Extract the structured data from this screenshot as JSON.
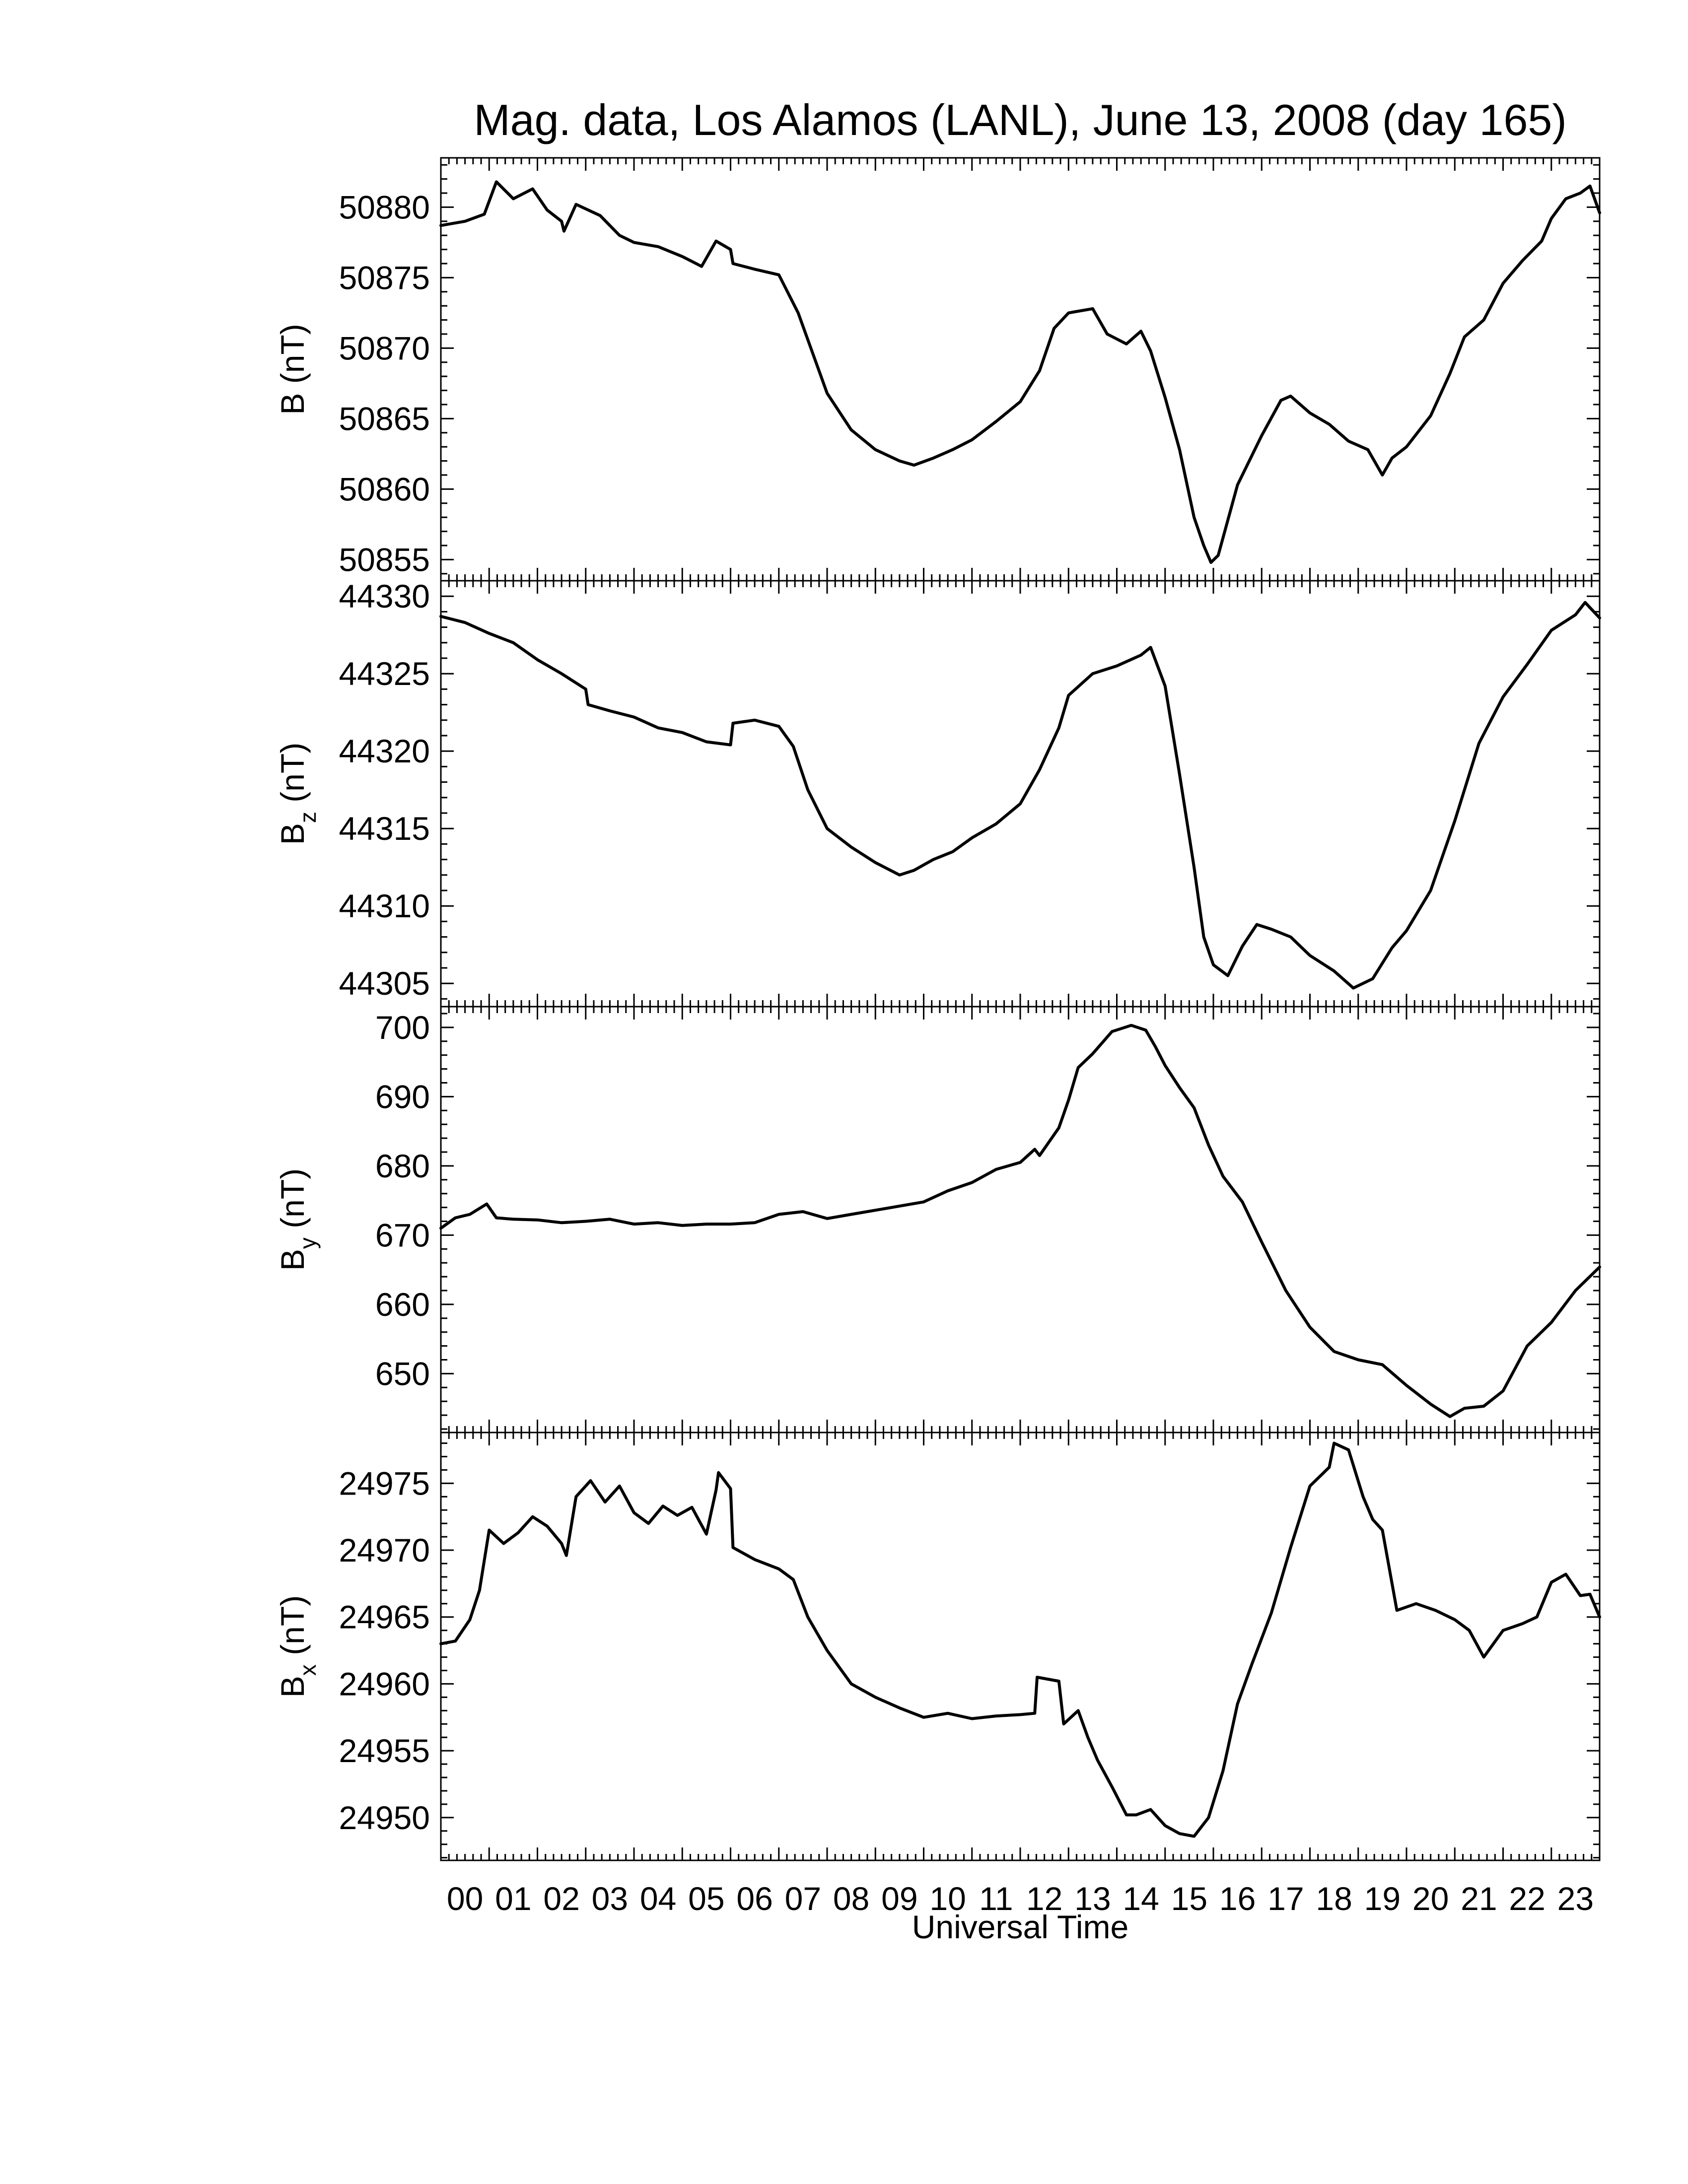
{
  "title": "Mag. data, Los Alamos (LANL), June 13, 2008 (day 165)",
  "xlabel": "Universal Time",
  "xtick_labels": [
    "00",
    "01",
    "02",
    "03",
    "04",
    "05",
    "06",
    "07",
    "08",
    "09",
    "10",
    "11",
    "12",
    "13",
    "14",
    "15",
    "16",
    "17",
    "18",
    "19",
    "20",
    "21",
    "22",
    "23"
  ],
  "chart_data": [
    {
      "type": "line",
      "ylabel": {
        "main": "B",
        "sub": "",
        "unit": "(nT)"
      },
      "xlim": [
        0,
        24
      ],
      "ylim": [
        50853.5,
        50883.5
      ],
      "yticks": [
        50855,
        50860,
        50865,
        50870,
        50875,
        50880
      ],
      "grid": false,
      "series": [
        {
          "x": [
            0,
            0.5,
            0.9,
            1.15,
            1.5,
            1.9,
            2.2,
            2.5,
            2.55,
            2.8,
            3.3,
            3.7,
            4.0,
            4.5,
            5.0,
            5.4,
            5.7,
            6.0,
            6.05,
            6.5,
            7.0,
            7.4,
            8.0,
            8.5,
            9.0,
            9.5,
            9.8,
            10.2,
            10.6,
            11.0,
            11.5,
            12.0,
            12.4,
            12.7,
            13.0,
            13.5,
            13.8,
            14.2,
            14.5,
            14.7,
            15.0,
            15.3,
            15.6,
            15.8,
            15.95,
            16.1,
            16.5,
            17.0,
            17.4,
            17.6,
            18.0,
            18.4,
            18.8,
            19.2,
            19.5,
            19.7,
            20.0,
            20.5,
            20.9,
            21.2,
            21.6,
            22.0,
            22.4,
            22.8,
            23.0,
            23.3,
            23.6,
            23.8,
            24.0
          ],
          "y": [
            50878.7,
            50879,
            50879.5,
            50881.8,
            50880.6,
            50881.3,
            50879.8,
            50879,
            50878.3,
            50880.2,
            50879.4,
            50878,
            50877.5,
            50877.2,
            50876.5,
            50875.8,
            50877.6,
            50877.0,
            50876,
            50875.6,
            50875.2,
            50872.5,
            50866.8,
            50864.2,
            50862.8,
            50862,
            50861.7,
            50862.2,
            50862.8,
            50863.5,
            50864.8,
            50866.2,
            50868.4,
            50871.4,
            50872.5,
            50872.8,
            50871,
            50870.3,
            50871.2,
            50869.8,
            50866.5,
            50862.8,
            50858,
            50856,
            50854.8,
            50855.3,
            50860.3,
            50863.8,
            50866.3,
            50866.6,
            50865.4,
            50864.6,
            50863.4,
            50862.8,
            50861,
            50862.2,
            50863,
            50865.2,
            50868.2,
            50870.8,
            50872,
            50874.6,
            50876.2,
            50877.6,
            50879.2,
            50880.6,
            50881,
            50881.5,
            50879.6
          ]
        }
      ]
    },
    {
      "type": "line",
      "ylabel": {
        "main": "B",
        "sub": "z",
        "unit": "(nT)"
      },
      "xlim": [
        0,
        24
      ],
      "ylim": [
        44303.5,
        44331
      ],
      "yticks": [
        44305,
        44310,
        44315,
        44320,
        44325,
        44330
      ],
      "grid": false,
      "series": [
        {
          "x": [
            0,
            0.5,
            1.0,
            1.5,
            2.0,
            2.5,
            3.0,
            3.05,
            3.5,
            4.0,
            4.5,
            5.0,
            5.5,
            6.0,
            6.05,
            6.5,
            7.0,
            7.3,
            7.6,
            8.0,
            8.5,
            9.0,
            9.5,
            9.8,
            10.2,
            10.6,
            11.0,
            11.5,
            12.0,
            12.4,
            12.8,
            13.0,
            13.5,
            14.0,
            14.5,
            14.7,
            15.0,
            15.3,
            15.6,
            15.8,
            16.0,
            16.3,
            16.6,
            16.9,
            17.2,
            17.6,
            18.0,
            18.5,
            18.9,
            19.3,
            19.7,
            20.0,
            20.5,
            21.0,
            21.5,
            22.0,
            22.5,
            23.0,
            23.5,
            23.7,
            24.0
          ],
          "y": [
            44328.7,
            44328.3,
            44327.6,
            44327,
            44325.9,
            44325,
            44324,
            44323,
            44322.6,
            44322.2,
            44321.5,
            44321.2,
            44320.6,
            44320.4,
            44321.8,
            44322,
            44321.6,
            44320.3,
            44317.5,
            44315,
            44313.8,
            44312.8,
            44312,
            44312.3,
            44313,
            44313.5,
            44314.4,
            44315.3,
            44316.6,
            44318.8,
            44321.5,
            44323.6,
            44325,
            44325.5,
            44326.2,
            44326.7,
            44324.2,
            44318.5,
            44312.5,
            44308,
            44306.2,
            44305.5,
            44307.4,
            44308.8,
            44308.5,
            44308,
            44306.8,
            44305.8,
            44304.7,
            44305.3,
            44307.3,
            44308.4,
            44311,
            44315.5,
            44320.5,
            44323.5,
            44325.6,
            44327.8,
            44328.8,
            44329.6,
            44328.6
          ]
        }
      ]
    },
    {
      "type": "line",
      "ylabel": {
        "main": "B",
        "sub": "y",
        "unit": "(nT)"
      },
      "xlim": [
        0,
        24
      ],
      "ylim": [
        641.5,
        703
      ],
      "yticks": [
        650,
        660,
        670,
        680,
        690,
        700
      ],
      "grid": false,
      "series": [
        {
          "x": [
            0,
            0.3,
            0.6,
            0.95,
            1.15,
            1.5,
            2.0,
            2.5,
            3.0,
            3.5,
            4.0,
            4.5,
            5.0,
            5.5,
            6.0,
            6.5,
            7.0,
            7.5,
            8.0,
            8.5,
            9.0,
            9.5,
            10.0,
            10.5,
            11.0,
            11.5,
            12.0,
            12.3,
            12.4,
            12.8,
            13.0,
            13.2,
            13.5,
            13.9,
            14.3,
            14.6,
            14.8,
            15.0,
            15.3,
            15.6,
            15.9,
            16.2,
            16.6,
            17.0,
            17.5,
            18.0,
            18.5,
            19.0,
            19.5,
            20.0,
            20.5,
            20.9,
            21.2,
            21.6,
            22.0,
            22.5,
            23.0,
            23.5,
            24.0
          ],
          "y": [
            671,
            672.5,
            673,
            674.5,
            672.5,
            672.3,
            672.2,
            671.8,
            672,
            672.3,
            671.6,
            671.8,
            671.4,
            671.6,
            671.6,
            671.8,
            673,
            673.4,
            672.4,
            673,
            673.6,
            674.2,
            674.8,
            676.4,
            677.6,
            679.5,
            680.5,
            682.4,
            681.5,
            685.5,
            689.5,
            694.2,
            696.2,
            699.4,
            700.3,
            699.6,
            697.2,
            694.5,
            691.3,
            688.4,
            683,
            678.5,
            674.8,
            669,
            662,
            656.7,
            653.2,
            652,
            651.3,
            648.3,
            645.6,
            643.8,
            645,
            645.3,
            647.5,
            654,
            657.4,
            662,
            665.4
          ]
        }
      ]
    },
    {
      "type": "line",
      "ylabel": {
        "main": "B",
        "sub": "x",
        "unit": "(nT)"
      },
      "xlim": [
        0,
        24
      ],
      "ylim": [
        24946.8,
        24978.8
      ],
      "yticks": [
        24950,
        24955,
        24960,
        24965,
        24970,
        24975
      ],
      "grid": false,
      "series": [
        {
          "x": [
            0,
            0.3,
            0.6,
            0.8,
            1.0,
            1.3,
            1.6,
            1.9,
            2.2,
            2.5,
            2.6,
            2.8,
            3.1,
            3.4,
            3.7,
            4.0,
            4.3,
            4.6,
            4.9,
            5.2,
            5.5,
            5.7,
            5.75,
            6.0,
            6.05,
            6.5,
            7.0,
            7.3,
            7.6,
            8.0,
            8.5,
            9.0,
            9.5,
            10.0,
            10.5,
            11.0,
            11.5,
            12.0,
            12.3,
            12.35,
            12.8,
            12.9,
            13.2,
            13.4,
            13.6,
            13.9,
            14.2,
            14.4,
            14.7,
            15.0,
            15.3,
            15.6,
            15.9,
            16.2,
            16.5,
            16.8,
            17.2,
            17.6,
            18.0,
            18.4,
            18.5,
            18.8,
            19.1,
            19.3,
            19.5,
            19.8,
            20.2,
            20.6,
            21.0,
            21.3,
            21.6,
            22.0,
            22.4,
            22.7,
            23.0,
            23.3,
            23.6,
            23.8,
            24.0
          ],
          "y": [
            24963,
            24963.2,
            24964.8,
            24967,
            24971.5,
            24970.5,
            24971.3,
            24972.5,
            24971.8,
            24970.5,
            24969.6,
            24974,
            24975.2,
            24973.6,
            24974.8,
            24972.8,
            24972,
            24973.3,
            24972.6,
            24973.2,
            24971.2,
            24974.5,
            24975.8,
            24974.6,
            24970.2,
            24969.3,
            24968.6,
            24967.8,
            24965,
            24962.5,
            24960,
            24959,
            24958.2,
            24957.5,
            24957.8,
            24957.4,
            24957.6,
            24957.7,
            24957.8,
            24960.5,
            24960.2,
            24957,
            24958,
            24956,
            24954.3,
            24952.3,
            24950.2,
            24950.2,
            24950.6,
            24949.4,
            24948.8,
            24948.6,
            24950,
            24953.5,
            24958.5,
            24961.5,
            24965.3,
            24970.2,
            24974.8,
            24976.2,
            24978,
            24977.5,
            24974,
            24972.3,
            24971.5,
            24965.5,
            24966,
            24965.5,
            24964.8,
            24964,
            24962,
            24964,
            24964.5,
            24965,
            24967.6,
            24968.2,
            24966.6,
            24966.7,
            24965
          ]
        }
      ]
    }
  ]
}
